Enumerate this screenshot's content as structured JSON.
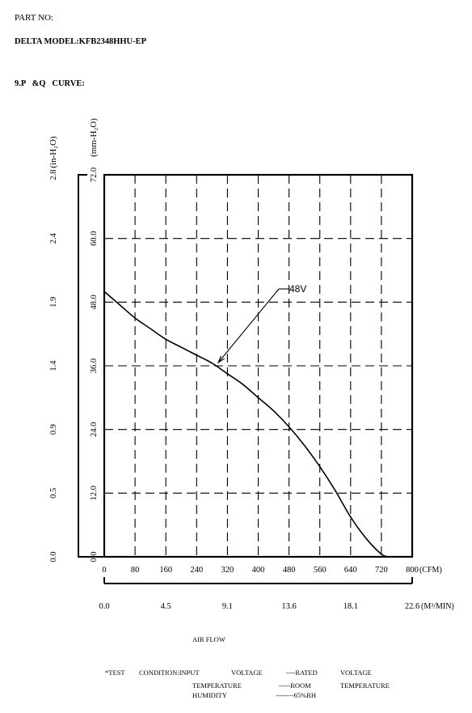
{
  "header": {
    "part_no": "PART NO:",
    "model": "DELTA MODEL:KFB2348HHU-EP",
    "section_title": "9.P   &Q   CURVE:"
  },
  "chart_data": {
    "type": "line",
    "title": "",
    "xlabel": "AIR FLOW",
    "x_unit_primary": "(CFM)",
    "x_unit_secondary": "(M³/MIN)",
    "y_unit_primary": "(mm-H₂O)",
    "y_unit_secondary": "(in-H₂O)",
    "xlim": [
      0,
      800
    ],
    "ylim": [
      0,
      72
    ],
    "grid": true,
    "x_ticks": [
      "0",
      "80",
      "160",
      "240",
      "320",
      "400",
      "480",
      "560",
      "640",
      "720",
      "800"
    ],
    "x2_ticks": [
      "0.0",
      "4.5",
      "9.1",
      "13.6",
      "18.1",
      "22.6"
    ],
    "y_ticks": [
      "0.0",
      "12.0",
      "24.0",
      "36.0",
      "48.0",
      "60.0",
      "72.0"
    ],
    "y2_ticks": [
      "0.0",
      "0.5",
      "0.9",
      "1.4",
      "1.9",
      "2.4",
      "2.8"
    ],
    "series": [
      {
        "name": "48V",
        "x": [
          0,
          40,
          80,
          120,
          160,
          200,
          240,
          280,
          320,
          360,
          400,
          440,
          480,
          520,
          560,
          600,
          640,
          680,
          720,
          740
        ],
        "y": [
          50.0,
          47.5,
          45.0,
          43.0,
          41.0,
          39.5,
          38.0,
          36.5,
          34.5,
          32.5,
          30.0,
          27.5,
          24.5,
          21.0,
          17.0,
          12.5,
          7.5,
          3.5,
          0.5,
          0.0
        ]
      }
    ],
    "annotation": {
      "label": "48V",
      "point": [
        290,
        36.0
      ]
    }
  },
  "footer": {
    "line1_a": "*TEST",
    "line1_b": "CONDITION:INPUT",
    "line1_c": "VOLTAGE",
    "line1_d": "----RATED",
    "line1_e": "VOLTAGE",
    "line2_a": "TEMPERATURE",
    "line2_b": "-----ROOM",
    "line2_c": "TEMPERATURE",
    "line3_a": "HUMIDITY",
    "line3_b": "--------65%RH"
  }
}
